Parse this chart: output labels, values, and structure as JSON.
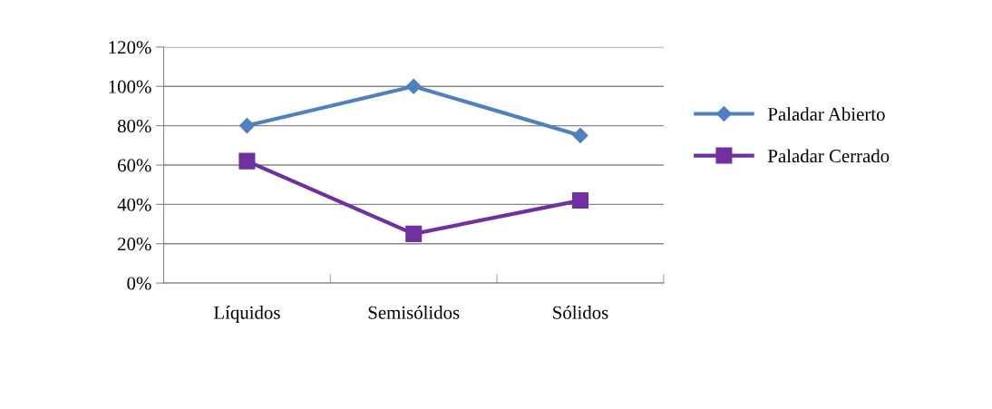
{
  "chart_data": {
    "type": "line",
    "categories": [
      "Líquidos",
      "Semisólidos",
      "Sólidos"
    ],
    "series": [
      {
        "name": "Paladar Abierto",
        "color": "#4f81bd",
        "marker": "diamond",
        "values": [
          80,
          100,
          75
        ]
      },
      {
        "name": "Paladar Cerrado",
        "color": "#7030a0",
        "marker": "square",
        "values": [
          62,
          25,
          42
        ]
      }
    ],
    "ylim": [
      0,
      120
    ],
    "yticks": [
      {
        "value": 0,
        "label": "0%"
      },
      {
        "value": 20,
        "label": "20%"
      },
      {
        "value": 40,
        "label": "40%"
      },
      {
        "value": 60,
        "label": "60%"
      },
      {
        "value": 80,
        "label": "80%"
      },
      {
        "value": 100,
        "label": "100%"
      },
      {
        "value": 120,
        "label": "120%"
      }
    ],
    "grid": "y",
    "legend": "right"
  }
}
